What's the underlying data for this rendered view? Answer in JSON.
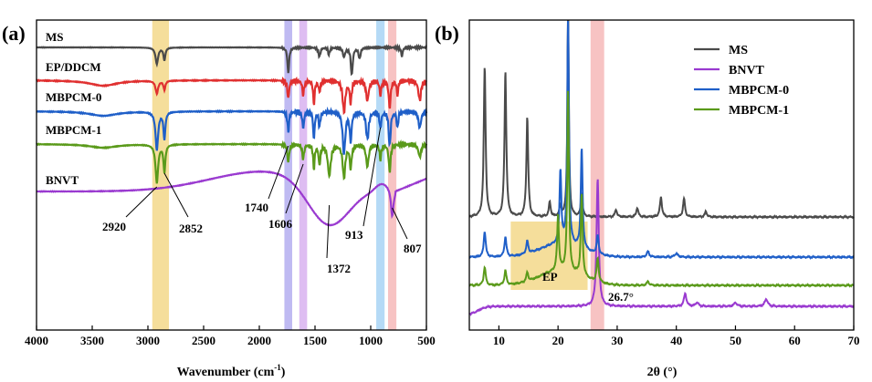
{
  "chart_data": [
    {
      "panel": "(a)",
      "type": "line",
      "xlabel": "Wavenumber (cm",
      "xlabel_sup": "-1",
      "xlabel_suffix": ")",
      "xlim": [
        4000,
        500
      ],
      "xticks": [
        4000,
        3500,
        3000,
        2500,
        2000,
        1500,
        1000,
        500
      ],
      "series": [
        {
          "name": "MS",
          "color": "#4a4a4a"
        },
        {
          "name": "EP/DDCM",
          "color": "#e03030"
        },
        {
          "name": "MBPCM-0",
          "color": "#1f5fc8"
        },
        {
          "name": "MBPCM-1",
          "color": "#5a9a1a"
        },
        {
          "name": "BNVT",
          "color": "#9a3ad0"
        }
      ],
      "bands": [
        {
          "center": 2886,
          "width": 150,
          "color": "#f3d88a"
        },
        {
          "center": 1740,
          "width": 70,
          "color": "#b4aef0"
        },
        {
          "center": 1606,
          "width": 70,
          "color": "#d8b2f0"
        },
        {
          "center": 913,
          "width": 75,
          "color": "#a8d4f4"
        },
        {
          "center": 807,
          "width": 75,
          "color": "#f6b8b8"
        }
      ],
      "annotations": [
        "2920",
        "2852",
        "1740",
        "1606",
        "1372",
        "913",
        "807"
      ]
    },
    {
      "panel": "(b)",
      "type": "line",
      "xlabel": "2θ (°)",
      "xlim": [
        5,
        70
      ],
      "xticks": [
        10,
        20,
        30,
        40,
        50,
        60,
        70
      ],
      "series": [
        {
          "name": "MS",
          "color": "#4a4a4a"
        },
        {
          "name": "BNVT",
          "color": "#9a3ad0"
        },
        {
          "name": "MBPCM-0",
          "color": "#1f5fc8"
        },
        {
          "name": "MBPCM-1",
          "color": "#5a9a1a"
        }
      ],
      "bands": [
        {
          "range": [
            12,
            25
          ],
          "color": "#f3d88a",
          "label": "EP"
        },
        {
          "range": [
            25.5,
            27.8
          ],
          "color": "#f6b8b8"
        }
      ],
      "annotations": [
        "EP",
        "26.7°"
      ]
    }
  ]
}
